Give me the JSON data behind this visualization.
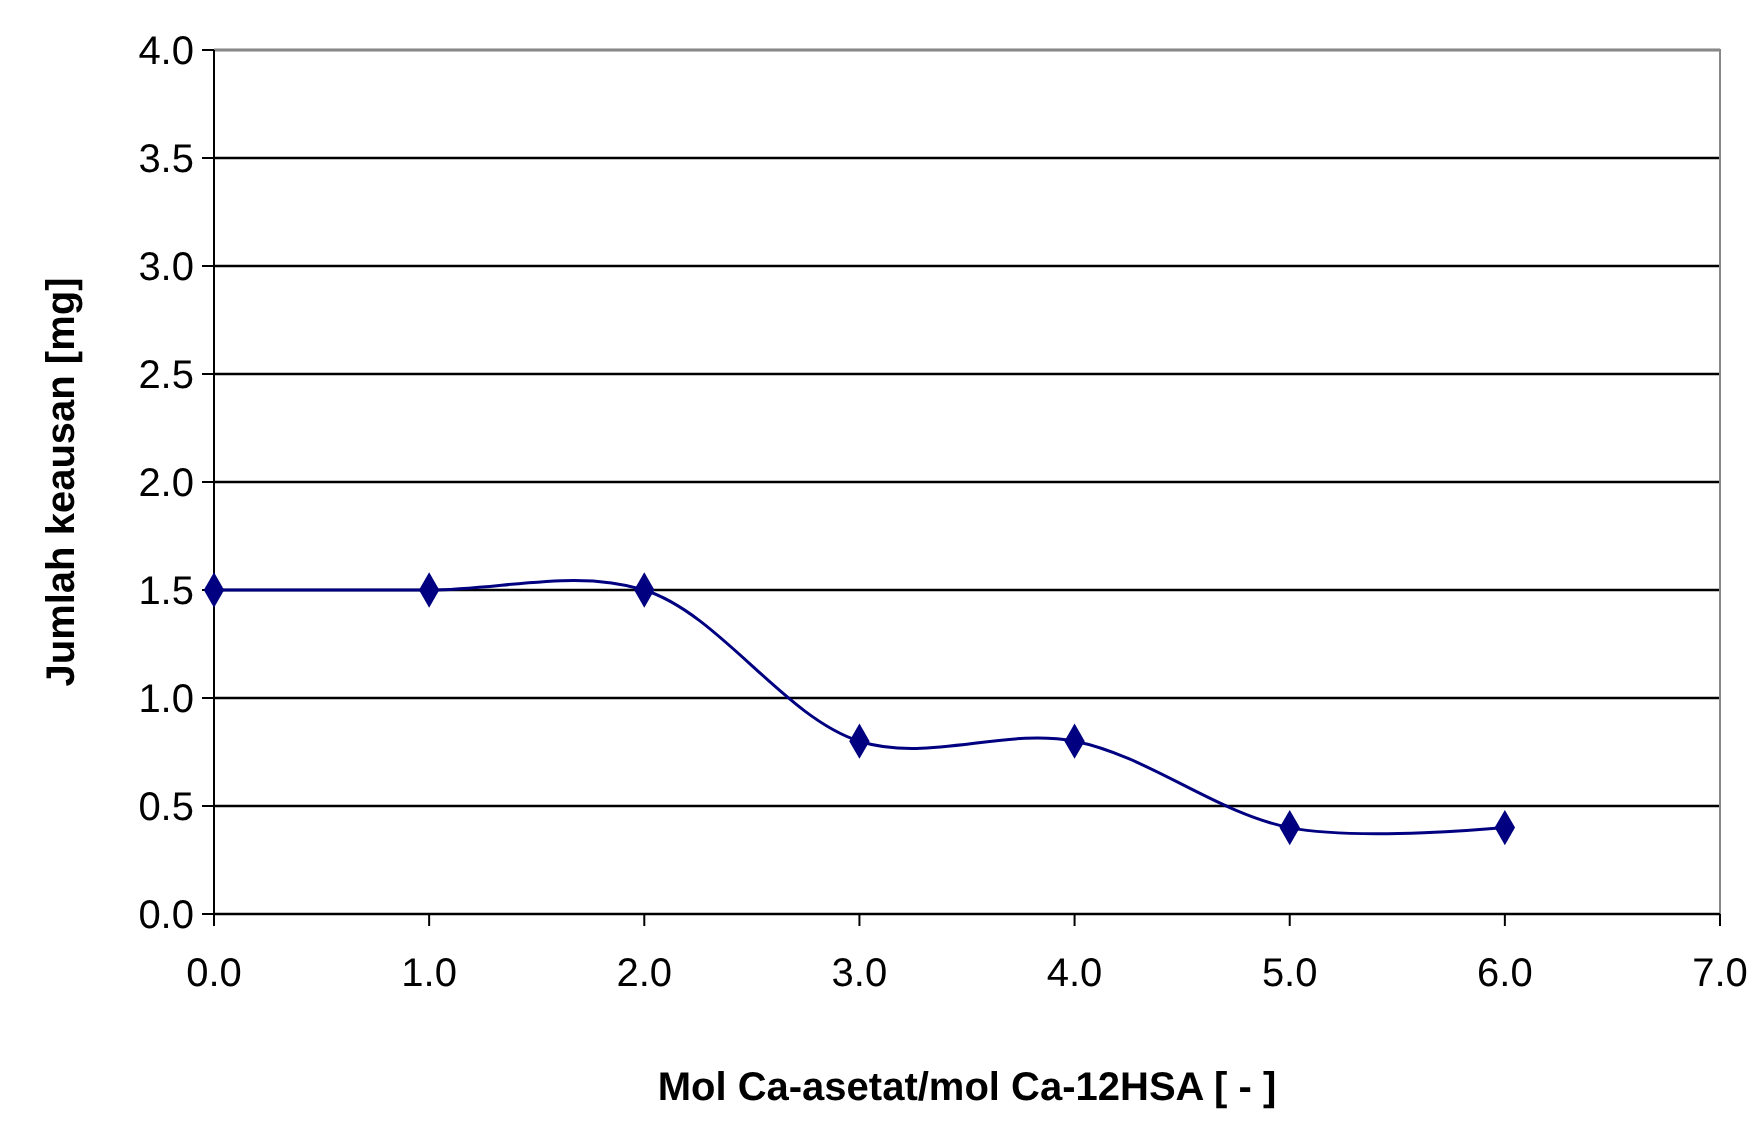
{
  "chart_data": {
    "type": "line",
    "xlabel": "Mol Ca-asetat/mol Ca-12HSA [ - ]",
    "ylabel": "Jumlah keausan [mg]",
    "x": [
      0,
      1,
      2,
      3,
      4,
      5,
      6
    ],
    "series": [
      {
        "color": "#000080",
        "values": [
          1.5,
          1.5,
          1.5,
          0.8,
          0.8,
          0.4,
          0.4
        ]
      }
    ],
    "xlim": [
      0,
      7
    ],
    "xticks": [
      {
        "value": 0,
        "label": "0.0"
      },
      {
        "value": 1,
        "label": "1.0"
      },
      {
        "value": 2,
        "label": "2.0"
      },
      {
        "value": 3,
        "label": "3.0"
      },
      {
        "value": 4,
        "label": "4.0"
      },
      {
        "value": 5,
        "label": "5.0"
      },
      {
        "value": 6,
        "label": "6.0"
      },
      {
        "value": 7,
        "label": "7.0"
      }
    ],
    "ylim": [
      0,
      4
    ],
    "yticks": [
      {
        "value": 0,
        "label": "0.0"
      },
      {
        "value": 0.5,
        "label": "0.5"
      },
      {
        "value": 1,
        "label": "1.0"
      },
      {
        "value": 1.5,
        "label": "1.5"
      },
      {
        "value": 2,
        "label": "2.0"
      },
      {
        "value": 2.5,
        "label": "2.5"
      },
      {
        "value": 3,
        "label": "3.0"
      },
      {
        "value": 3.5,
        "label": "3.5"
      },
      {
        "value": 4,
        "label": "4.0"
      }
    ],
    "grid": "y",
    "marker": "diamond",
    "line_style": "solid"
  }
}
